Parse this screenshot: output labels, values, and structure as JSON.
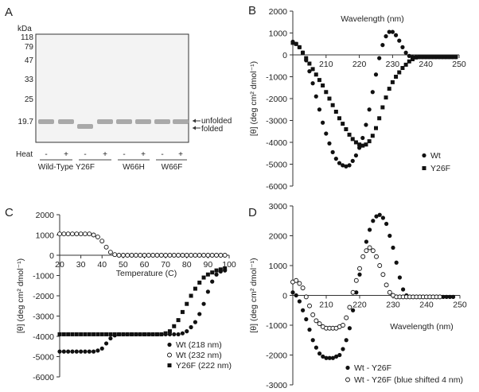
{
  "panels": {
    "a": "A",
    "b": "B",
    "c": "C",
    "d": "D"
  },
  "gel": {
    "unit": "kDa",
    "markers": [
      "118",
      "79",
      "47",
      "33",
      "25",
      "19.7"
    ],
    "band_labels": [
      "unfolded",
      "folded"
    ],
    "heat_label": "Heat",
    "heat_signs": [
      "-",
      "+",
      "-",
      "+",
      "-",
      "+",
      "-",
      "+"
    ],
    "samples": [
      "Wild-Type",
      "Y26F",
      "W66H",
      "W66F"
    ],
    "band_states": [
      "unfolded",
      "unfolded",
      "folded",
      "unfolded",
      "unfolded",
      "unfolded",
      "unfolded",
      "unfolded"
    ],
    "colors": {
      "gel": "#f3f3f3",
      "band": "#a9a9a9"
    }
  },
  "chart_data": [
    {
      "id": "B",
      "type": "scatter",
      "title": "",
      "xlabel": "Wavelength (nm)",
      "ylabel": "[θ] (deg cm² dmol⁻¹)",
      "xlim": [
        200,
        250
      ],
      "ylim": [
        -6000,
        2000
      ],
      "xticks": [
        "210",
        "220",
        "230",
        "240",
        "250"
      ],
      "yticks": [
        "2000",
        "1000",
        "0",
        "-1000",
        "-2000",
        "-3000",
        "-4000",
        "-5000",
        "-6000"
      ],
      "legend_position": "bottom-right",
      "series": [
        {
          "name": "Wt",
          "marker": "circle-filled",
          "x": [
            200,
            201,
            202,
            203,
            204,
            205,
            206,
            207,
            208,
            209,
            210,
            211,
            212,
            213,
            214,
            215,
            216,
            217,
            218,
            219,
            220,
            221,
            222,
            223,
            224,
            225,
            226,
            227,
            228,
            229,
            230,
            231,
            232,
            233,
            234,
            235,
            236,
            237,
            238,
            239,
            240,
            241,
            242,
            243,
            244,
            245,
            246,
            247,
            248,
            249
          ],
          "y": [
            600,
            500,
            350,
            100,
            -250,
            -750,
            -1300,
            -1900,
            -2500,
            -3100,
            -3600,
            -4050,
            -4450,
            -4750,
            -4950,
            -5050,
            -5100,
            -5050,
            -4850,
            -4600,
            -4250,
            -3800,
            -3200,
            -2500,
            -1700,
            -900,
            -150,
            450,
            850,
            1050,
            1050,
            900,
            650,
            350,
            100,
            -50,
            -100,
            -100,
            -100,
            -100,
            -100,
            -100,
            -100,
            -100,
            -100,
            -100,
            -100,
            -100,
            -100,
            -100
          ]
        },
        {
          "name": "Y26F",
          "marker": "square-filled",
          "x": [
            200,
            201,
            202,
            203,
            204,
            205,
            206,
            207,
            208,
            209,
            210,
            211,
            212,
            213,
            214,
            215,
            216,
            217,
            218,
            219,
            220,
            221,
            222,
            223,
            224,
            225,
            226,
            227,
            228,
            229,
            230,
            231,
            232,
            233,
            234,
            235,
            236,
            237,
            238,
            239,
            240,
            241,
            242,
            243,
            244,
            245,
            246,
            247,
            248,
            249
          ],
          "y": [
            550,
            500,
            350,
            100,
            -150,
            -400,
            -650,
            -900,
            -1150,
            -1400,
            -1700,
            -2000,
            -2300,
            -2600,
            -2900,
            -3150,
            -3400,
            -3650,
            -3850,
            -4000,
            -4100,
            -4150,
            -4100,
            -3950,
            -3700,
            -3350,
            -2900,
            -2400,
            -1950,
            -1550,
            -1250,
            -1000,
            -800,
            -600,
            -450,
            -300,
            -200,
            -120,
            -100,
            -100,
            -100,
            -100,
            -100,
            -100,
            -100,
            -100,
            -100,
            -100,
            -100,
            -100
          ]
        }
      ]
    },
    {
      "id": "C",
      "type": "scatter",
      "title": "",
      "xlabel": "Temperature (C)",
      "ylabel": "[θ] (deg cm² dmol⁻¹)",
      "xlim": [
        20,
        100
      ],
      "ylim": [
        -6000,
        2000
      ],
      "xticks": [
        "20",
        "30",
        "40",
        "50",
        "60",
        "70",
        "80",
        "90",
        "100"
      ],
      "yticks": [
        "2000",
        "1000",
        "0",
        "-1000",
        "-2000",
        "-3000",
        "-4000",
        "-5000",
        "-6000"
      ],
      "legend_position": "bottom-right",
      "series": [
        {
          "name": "Wt (218 nm)",
          "marker": "circle-filled",
          "x": [
            20,
            22,
            24,
            26,
            28,
            30,
            32,
            34,
            36,
            38,
            40,
            42,
            44,
            46,
            48,
            50,
            52,
            54,
            56,
            58,
            60,
            62,
            64,
            66,
            68,
            70,
            72,
            74,
            76,
            78,
            80,
            82,
            84,
            86,
            88,
            90,
            92,
            94,
            96,
            98
          ],
          "y": [
            -4750,
            -4750,
            -4750,
            -4750,
            -4750,
            -4750,
            -4750,
            -4750,
            -4750,
            -4700,
            -4600,
            -4350,
            -4100,
            -3950,
            -3900,
            -3900,
            -3900,
            -3900,
            -3900,
            -3900,
            -3900,
            -3900,
            -3900,
            -3900,
            -3900,
            -3900,
            -3900,
            -3900,
            -3900,
            -3850,
            -3750,
            -3550,
            -3300,
            -2900,
            -2400,
            -1800,
            -1300,
            -950,
            -800,
            -750
          ]
        },
        {
          "name": "Wt (232 nm)",
          "marker": "circle-open",
          "x": [
            20,
            22,
            24,
            26,
            28,
            30,
            32,
            34,
            36,
            38,
            40,
            42,
            44,
            46,
            48,
            50,
            52,
            54,
            56,
            58,
            60,
            62,
            64,
            66,
            68,
            70,
            72,
            74,
            76,
            78,
            80,
            82,
            84,
            86,
            88,
            90,
            92,
            94,
            96,
            98
          ],
          "y": [
            1050,
            1050,
            1050,
            1050,
            1050,
            1050,
            1050,
            1050,
            1000,
            900,
            700,
            400,
            150,
            30,
            0,
            0,
            0,
            0,
            0,
            0,
            0,
            0,
            0,
            0,
            0,
            0,
            0,
            0,
            0,
            0,
            0,
            0,
            0,
            0,
            0,
            0,
            0,
            0,
            0,
            0
          ]
        },
        {
          "name": "Y26F (222 nm)",
          "marker": "square-filled",
          "x": [
            20,
            22,
            24,
            26,
            28,
            30,
            32,
            34,
            36,
            38,
            40,
            42,
            44,
            46,
            48,
            50,
            52,
            54,
            56,
            58,
            60,
            62,
            64,
            66,
            68,
            70,
            72,
            74,
            76,
            78,
            80,
            82,
            84,
            86,
            88,
            90,
            92,
            94,
            96,
            98
          ],
          "y": [
            -3900,
            -3900,
            -3900,
            -3900,
            -3900,
            -3900,
            -3900,
            -3900,
            -3900,
            -3900,
            -3900,
            -3900,
            -3900,
            -3900,
            -3900,
            -3900,
            -3900,
            -3900,
            -3900,
            -3900,
            -3900,
            -3900,
            -3900,
            -3900,
            -3900,
            -3850,
            -3750,
            -3500,
            -3200,
            -2800,
            -2400,
            -2000,
            -1650,
            -1350,
            -1100,
            -950,
            -850,
            -750,
            -700,
            -650
          ]
        }
      ]
    },
    {
      "id": "D",
      "type": "scatter",
      "title": "",
      "xlabel": "Wavelength (nm)",
      "ylabel": "[θ] (deg cm² dmol⁻¹)",
      "xlim": [
        200,
        250
      ],
      "ylim": [
        -3000,
        3000
      ],
      "xticks": [
        "210",
        "220",
        "230",
        "240",
        "250"
      ],
      "yticks": [
        "3000",
        "2000",
        "1000",
        "0",
        "-1000",
        "-2000",
        "-3000"
      ],
      "legend_position": "bottom-left",
      "series": [
        {
          "name": "Wt - Y26F",
          "marker": "circle-filled",
          "x": [
            200,
            201,
            202,
            203,
            204,
            205,
            206,
            207,
            208,
            209,
            210,
            211,
            212,
            213,
            214,
            215,
            216,
            217,
            218,
            219,
            220,
            221,
            222,
            223,
            224,
            225,
            226,
            227,
            228,
            229,
            230,
            231,
            232,
            233,
            234,
            235,
            236,
            237,
            238,
            239,
            240,
            241,
            242,
            243,
            244,
            245,
            246,
            247,
            248
          ],
          "y": [
            100,
            0,
            -200,
            -500,
            -800,
            -1150,
            -1500,
            -1750,
            -1950,
            -2050,
            -2100,
            -2100,
            -2100,
            -2050,
            -2000,
            -1800,
            -1500,
            -1100,
            -500,
            100,
            700,
            1300,
            1800,
            2200,
            2500,
            2650,
            2700,
            2600,
            2400,
            2000,
            1600,
            1100,
            600,
            200,
            0,
            -50,
            -50,
            -50,
            -50,
            -50,
            -50,
            -50,
            -50,
            -50,
            -50,
            -50,
            -50,
            -50,
            -50
          ]
        },
        {
          "name": "Wt - Y26F (blue shifted 4 nm)",
          "marker": "circle-open",
          "x": [
            200,
            201,
            202,
            203,
            204,
            205,
            206,
            207,
            208,
            209,
            210,
            211,
            212,
            213,
            214,
            215,
            216,
            217,
            218,
            219,
            220,
            221,
            222,
            223,
            224,
            225,
            226,
            227,
            228,
            229,
            230,
            231,
            232,
            233,
            234,
            235,
            236,
            237,
            238,
            239,
            240,
            241,
            242,
            243,
            244
          ],
          "y": [
            450,
            500,
            400,
            250,
            -50,
            -350,
            -650,
            -850,
            -950,
            -1050,
            -1100,
            -1100,
            -1100,
            -1100,
            -1050,
            -1000,
            -750,
            -400,
            100,
            500,
            900,
            1300,
            1500,
            1600,
            1500,
            1300,
            1000,
            700,
            350,
            100,
            0,
            -50,
            -50,
            -50,
            -50,
            -50,
            -50,
            -50,
            -50,
            -50,
            -50,
            -50,
            -50,
            -50,
            -50
          ]
        }
      ]
    }
  ]
}
